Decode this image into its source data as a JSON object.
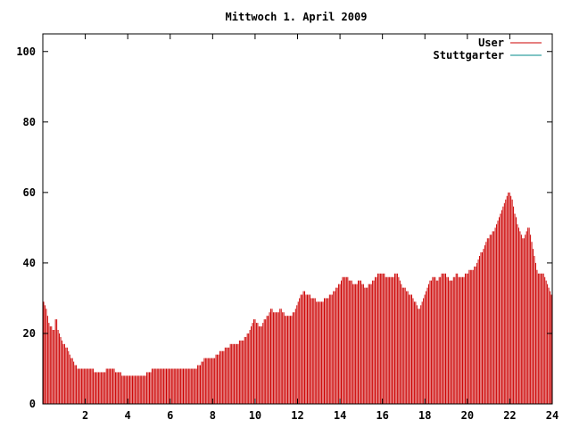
{
  "chart_data": {
    "type": "bar",
    "title": "Mittwoch 1. April 2009",
    "xlabel": "",
    "ylabel": "",
    "xlim": [
      0,
      24
    ],
    "ylim": [
      0,
      105
    ],
    "x_ticks": [
      2,
      4,
      6,
      8,
      10,
      12,
      14,
      16,
      18,
      20,
      22,
      24
    ],
    "y_ticks": [
      0,
      20,
      40,
      60,
      80,
      100
    ],
    "grid": false,
    "legend_position": "top-right",
    "series": [
      {
        "name": "User",
        "color": "#cc0000",
        "values": [
          29,
          28,
          27,
          25,
          23,
          22,
          22,
          21,
          21,
          24,
          24,
          21,
          20,
          19,
          18,
          17,
          17,
          16,
          16,
          15,
          14,
          13,
          13,
          12,
          11,
          11,
          10,
          10,
          10,
          10,
          10,
          10,
          10,
          10,
          10,
          10,
          10,
          10,
          10,
          9,
          9,
          9,
          9,
          9,
          9,
          9,
          9,
          9,
          10,
          10,
          10,
          10,
          10,
          10,
          10,
          9,
          9,
          9,
          9,
          9,
          8,
          8,
          8,
          8,
          8,
          8,
          8,
          8,
          8,
          8,
          8,
          8,
          8,
          8,
          8,
          8,
          8,
          8,
          8,
          9,
          9,
          9,
          9,
          10,
          10,
          10,
          10,
          10,
          10,
          10,
          10,
          10,
          10,
          10,
          10,
          10,
          10,
          10,
          10,
          10,
          10,
          10,
          10,
          10,
          10,
          10,
          10,
          10,
          10,
          10,
          10,
          10,
          10,
          10,
          10,
          10,
          10,
          10,
          11,
          11,
          11,
          12,
          12,
          13,
          13,
          13,
          13,
          13,
          13,
          13,
          13,
          13,
          14,
          14,
          14,
          15,
          15,
          15,
          15,
          16,
          16,
          16,
          16,
          17,
          17,
          17,
          17,
          17,
          17,
          17,
          18,
          18,
          18,
          18,
          19,
          19,
          20,
          20,
          21,
          22,
          23,
          24,
          24,
          23,
          23,
          22,
          22,
          22,
          23,
          24,
          24,
          25,
          25,
          26,
          27,
          27,
          26,
          26,
          26,
          26,
          26,
          27,
          27,
          26,
          26,
          25,
          25,
          25,
          25,
          25,
          25,
          26,
          26,
          27,
          28,
          29,
          30,
          31,
          31,
          32,
          32,
          31,
          31,
          31,
          31,
          30,
          30,
          30,
          30,
          29,
          29,
          29,
          29,
          29,
          29,
          30,
          30,
          30,
          30,
          31,
          31,
          31,
          32,
          32,
          33,
          33,
          34,
          34,
          35,
          36,
          36,
          36,
          36,
          36,
          35,
          35,
          35,
          34,
          34,
          34,
          34,
          35,
          35,
          35,
          34,
          34,
          33,
          33,
          33,
          34,
          34,
          34,
          35,
          35,
          36,
          36,
          37,
          37,
          37,
          37,
          37,
          37,
          36,
          36,
          36,
          36,
          36,
          36,
          36,
          37,
          37,
          37,
          36,
          35,
          34,
          33,
          33,
          33,
          32,
          32,
          31,
          31,
          31,
          30,
          29,
          29,
          28,
          27,
          27,
          28,
          29,
          30,
          31,
          32,
          33,
          34,
          35,
          35,
          36,
          36,
          36,
          35,
          35,
          36,
          36,
          37,
          37,
          37,
          37,
          36,
          36,
          35,
          35,
          35,
          36,
          36,
          37,
          37,
          36,
          36,
          36,
          36,
          36,
          37,
          37,
          37,
          38,
          38,
          38,
          38,
          39,
          39,
          40,
          41,
          42,
          43,
          43,
          44,
          45,
          46,
          47,
          47,
          48,
          48,
          49,
          49,
          50,
          51,
          52,
          53,
          54,
          55,
          56,
          57,
          58,
          59,
          60,
          60,
          59,
          58,
          56,
          54,
          53,
          51,
          50,
          49,
          48,
          47,
          47,
          48,
          49,
          50,
          50,
          48,
          46,
          44,
          42,
          40,
          38,
          37,
          37,
          37,
          37,
          37,
          36,
          35,
          34,
          33,
          32,
          31
        ]
      },
      {
        "name": "Stuttgarter",
        "color": "#008b8b",
        "values": []
      }
    ]
  }
}
